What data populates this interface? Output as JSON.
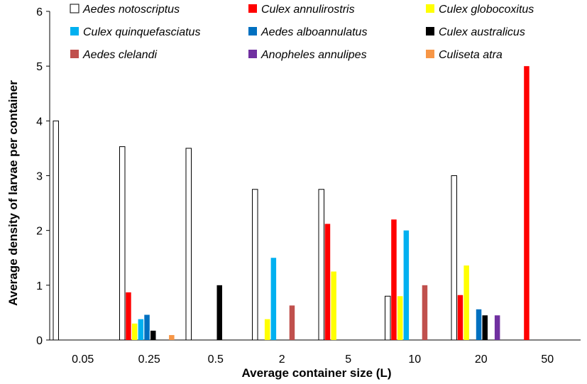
{
  "chart_data": {
    "type": "bar",
    "title": "",
    "xlabel": "Average container size (L)",
    "ylabel": "Average density of larvae per container",
    "ylim": [
      0,
      6
    ],
    "yticks": [
      "0",
      "1",
      "2",
      "3",
      "4",
      "5",
      "6"
    ],
    "grid": false,
    "legend_position": "top",
    "categories": [
      "0.05",
      "0.25",
      "0.5",
      "2",
      "5",
      "10",
      "20",
      "50"
    ],
    "series": [
      {
        "name": "Aedes notoscriptus",
        "color": "#ffffff",
        "outline": "#000000",
        "values": [
          4,
          3.53,
          3.5,
          2.75,
          2.75,
          0.8,
          3.0,
          0
        ]
      },
      {
        "name": "Culex annulirostris",
        "color": "#ff0000",
        "values": [
          0,
          0.87,
          0,
          0,
          2.12,
          2.2,
          0.82,
          5.0
        ]
      },
      {
        "name": "Culex globocoxitus",
        "color": "#ffff00",
        "values": [
          0,
          0.3,
          0,
          0.38,
          1.25,
          0.8,
          1.36,
          0
        ]
      },
      {
        "name": "Culex quinquefasciatus",
        "color": "#00b0f0",
        "values": [
          0,
          0.38,
          0,
          1.5,
          0,
          2.0,
          0,
          0
        ]
      },
      {
        "name": "Aedes alboannulatus",
        "color": "#0070c0",
        "values": [
          0,
          0.46,
          0,
          0,
          0,
          0,
          0.56,
          0
        ]
      },
      {
        "name": "Culex australicus",
        "color": "#000000",
        "values": [
          0,
          0.17,
          1.0,
          0,
          0,
          0,
          0.45,
          0
        ]
      },
      {
        "name": "Aedes clelandi",
        "color": "#c0504d",
        "values": [
          0,
          0,
          0,
          0.63,
          0,
          1.0,
          0,
          0
        ]
      },
      {
        "name": "Anopheles annulipes",
        "color": "#7030a0",
        "values": [
          0,
          0,
          0,
          0,
          0,
          0,
          0.45,
          0
        ]
      },
      {
        "name": "Culiseta atra",
        "color": "#f79646",
        "values": [
          0,
          0.09,
          0,
          0,
          0,
          0,
          0,
          0
        ]
      }
    ]
  }
}
